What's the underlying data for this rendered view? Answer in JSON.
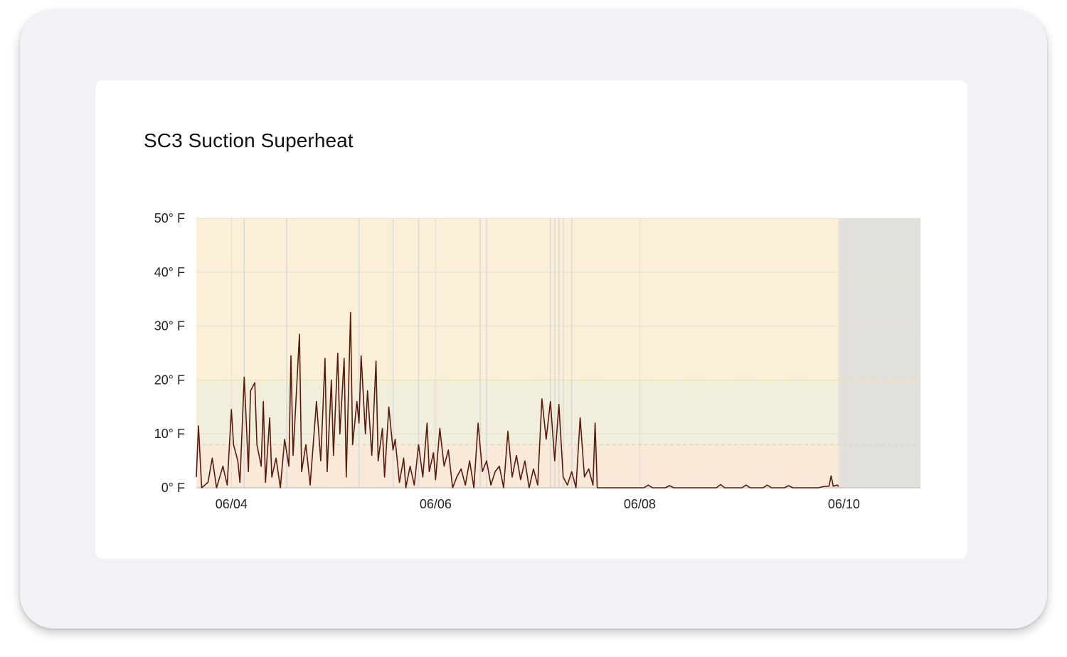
{
  "chart_data": {
    "type": "line",
    "title": "SC3 Suction Superheat",
    "xlabel": "",
    "ylabel": "",
    "ylim": [
      0,
      50
    ],
    "yticks": [
      {
        "value": 0,
        "label": "0° F"
      },
      {
        "value": 10,
        "label": "10° F"
      },
      {
        "value": 20,
        "label": "20° F"
      },
      {
        "value": 30,
        "label": "30° F"
      },
      {
        "value": 40,
        "label": "40° F"
      },
      {
        "value": 50,
        "label": "50° F"
      }
    ],
    "xlim": [
      "06/03 15:45",
      "06/10 18:00"
    ],
    "xticks": [
      {
        "value": "06/04 00:00",
        "label": "06/04"
      },
      {
        "value": "06/06 00:00",
        "label": "06/06"
      },
      {
        "value": "06/08 00:00",
        "label": "06/08"
      },
      {
        "value": "06/10 00:00",
        "label": "06/10"
      }
    ],
    "bands": [
      {
        "from": 0,
        "to": 8,
        "color": "#f9e9d9"
      },
      {
        "from": 8,
        "to": 20,
        "color": "#f1eedb"
      },
      {
        "from": 20,
        "to": 50,
        "color": "#fbf0d7"
      }
    ],
    "thresholds": [
      {
        "value": 8,
        "color": "#d9d7a8"
      },
      {
        "value": 20,
        "color": "#ece09a"
      }
    ],
    "no_data_region": {
      "from": "06/09 22:45",
      "to": "06/10 18:00",
      "color": "#e2e0dc"
    },
    "vertical_markers": [
      "06/04 03:00",
      "06/04 13:00",
      "06/05 06:00",
      "06/05 14:00",
      "06/05 20:00",
      "06/06 10:30",
      "06/06 12:00",
      "06/07 03:00",
      "06/07 04:00",
      "06/07 05:00",
      "06/07 06:00",
      "06/07 08:00"
    ],
    "series": [
      {
        "color": "#5a1a0c",
        "points": [
          [
            "06/03 15:45",
            2
          ],
          [
            "06/03 16:15",
            11.5
          ],
          [
            "06/03 17:00",
            0
          ],
          [
            "06/03 18:30",
            1
          ],
          [
            "06/03 19:30",
            5.5
          ],
          [
            "06/03 20:30",
            0
          ],
          [
            "06/03 22:00",
            4
          ],
          [
            "06/03 23:00",
            0.5
          ],
          [
            "06/04 00:00",
            14.5
          ],
          [
            "06/04 00:30",
            8
          ],
          [
            "06/04 01:30",
            5
          ],
          [
            "06/04 02:00",
            1
          ],
          [
            "06/04 03:00",
            20.5
          ],
          [
            "06/04 03:30",
            12
          ],
          [
            "06/04 04:00",
            3
          ],
          [
            "06/04 04:30",
            18
          ],
          [
            "06/04 05:30",
            19.5
          ],
          [
            "06/04 06:00",
            8
          ],
          [
            "06/04 07:00",
            4
          ],
          [
            "06/04 07:30",
            16
          ],
          [
            "06/04 08:00",
            1
          ],
          [
            "06/04 09:00",
            13
          ],
          [
            "06/04 09:30",
            2
          ],
          [
            "06/04 10:30",
            5.5
          ],
          [
            "06/04 11:30",
            0
          ],
          [
            "06/04 12:30",
            9
          ],
          [
            "06/04 13:30",
            4
          ],
          [
            "06/04 14:00",
            24.5
          ],
          [
            "06/04 14:30",
            6
          ],
          [
            "06/04 16:00",
            28.5
          ],
          [
            "06/04 16:30",
            3
          ],
          [
            "06/04 17:30",
            8
          ],
          [
            "06/04 18:30",
            0.5
          ],
          [
            "06/04 20:00",
            16
          ],
          [
            "06/04 21:00",
            5
          ],
          [
            "06/04 22:00",
            24
          ],
          [
            "06/04 22:30",
            3
          ],
          [
            "06/04 23:30",
            20
          ],
          [
            "06/05 00:00",
            6
          ],
          [
            "06/05 01:00",
            25
          ],
          [
            "06/05 01:30",
            10
          ],
          [
            "06/05 02:30",
            24
          ],
          [
            "06/05 03:00",
            2
          ],
          [
            "06/05 04:00",
            32.5
          ],
          [
            "06/05 04:30",
            8
          ],
          [
            "06/05 05:30",
            16
          ],
          [
            "06/05 06:00",
            12
          ],
          [
            "06/05 06:30",
            24.5
          ],
          [
            "06/05 07:30",
            10
          ],
          [
            "06/05 08:00",
            18
          ],
          [
            "06/05 09:00",
            6
          ],
          [
            "06/05 10:00",
            23.5
          ],
          [
            "06/05 10:30",
            5
          ],
          [
            "06/05 11:30",
            11
          ],
          [
            "06/05 12:00",
            2
          ],
          [
            "06/05 13:00",
            15
          ],
          [
            "06/05 14:00",
            7
          ],
          [
            "06/05 14:30",
            9
          ],
          [
            "06/05 15:30",
            1
          ],
          [
            "06/05 16:30",
            5.5
          ],
          [
            "06/05 17:00",
            0
          ],
          [
            "06/05 18:00",
            4
          ],
          [
            "06/05 19:00",
            0.5
          ],
          [
            "06/05 20:00",
            8
          ],
          [
            "06/05 21:00",
            2
          ],
          [
            "06/05 22:00",
            12
          ],
          [
            "06/05 22:30",
            3
          ],
          [
            "06/05 23:30",
            6.5
          ],
          [
            "06/06 00:00",
            1.5
          ],
          [
            "06/06 01:00",
            11
          ],
          [
            "06/06 02:00",
            4
          ],
          [
            "06/06 03:00",
            7
          ],
          [
            "06/06 04:00",
            0
          ],
          [
            "06/06 05:00",
            2
          ],
          [
            "06/06 06:00",
            3.5
          ],
          [
            "06/06 07:00",
            0.5
          ],
          [
            "06/06 08:00",
            5
          ],
          [
            "06/06 09:00",
            0
          ],
          [
            "06/06 10:00",
            12
          ],
          [
            "06/06 11:00",
            3
          ],
          [
            "06/06 12:00",
            5
          ],
          [
            "06/06 13:00",
            0.5
          ],
          [
            "06/06 14:00",
            3
          ],
          [
            "06/06 15:00",
            4
          ],
          [
            "06/06 16:00",
            0
          ],
          [
            "06/06 17:00",
            10.5
          ],
          [
            "06/06 18:00",
            2
          ],
          [
            "06/06 19:00",
            6
          ],
          [
            "06/06 20:00",
            1.5
          ],
          [
            "06/06 21:00",
            5
          ],
          [
            "06/06 22:00",
            0
          ],
          [
            "06/06 23:00",
            3.5
          ],
          [
            "06/07 00:00",
            0.5
          ],
          [
            "06/07 01:00",
            16.5
          ],
          [
            "06/07 02:00",
            9
          ],
          [
            "06/07 03:00",
            16
          ],
          [
            "06/07 04:00",
            5
          ],
          [
            "06/07 05:00",
            15.5
          ],
          [
            "06/07 06:00",
            2
          ],
          [
            "06/07 07:00",
            0.5
          ],
          [
            "06/07 08:00",
            3
          ],
          [
            "06/07 09:00",
            0
          ],
          [
            "06/07 10:00",
            13
          ],
          [
            "06/07 11:00",
            2
          ],
          [
            "06/07 12:00",
            3.5
          ],
          [
            "06/07 13:00",
            0.5
          ],
          [
            "06/07 13:30",
            12
          ],
          [
            "06/07 14:00",
            0
          ],
          [
            "06/07 16:00",
            0
          ],
          [
            "06/08 01:00",
            0
          ],
          [
            "06/08 02:00",
            0.5
          ],
          [
            "06/08 03:00",
            0
          ],
          [
            "06/08 06:00",
            0
          ],
          [
            "06/08 07:00",
            0.4
          ],
          [
            "06/08 08:00",
            0
          ],
          [
            "06/08 18:00",
            0
          ],
          [
            "06/08 19:00",
            0.6
          ],
          [
            "06/08 20:00",
            0
          ],
          [
            "06/09 00:00",
            0
          ],
          [
            "06/09 01:00",
            0.5
          ],
          [
            "06/09 02:00",
            0
          ],
          [
            "06/09 05:00",
            0
          ],
          [
            "06/09 06:00",
            0.5
          ],
          [
            "06/09 07:00",
            0
          ],
          [
            "06/09 10:00",
            0
          ],
          [
            "06/09 11:00",
            0.4
          ],
          [
            "06/09 12:00",
            0
          ],
          [
            "06/09 18:00",
            0
          ],
          [
            "06/09 19:00",
            0.2
          ],
          [
            "06/09 20:30",
            0.3
          ],
          [
            "06/09 21:00",
            2.2
          ],
          [
            "06/09 21:30",
            0.3
          ],
          [
            "06/09 22:30",
            0.5
          ],
          [
            "06/09 22:45",
            0.2
          ]
        ]
      }
    ]
  }
}
